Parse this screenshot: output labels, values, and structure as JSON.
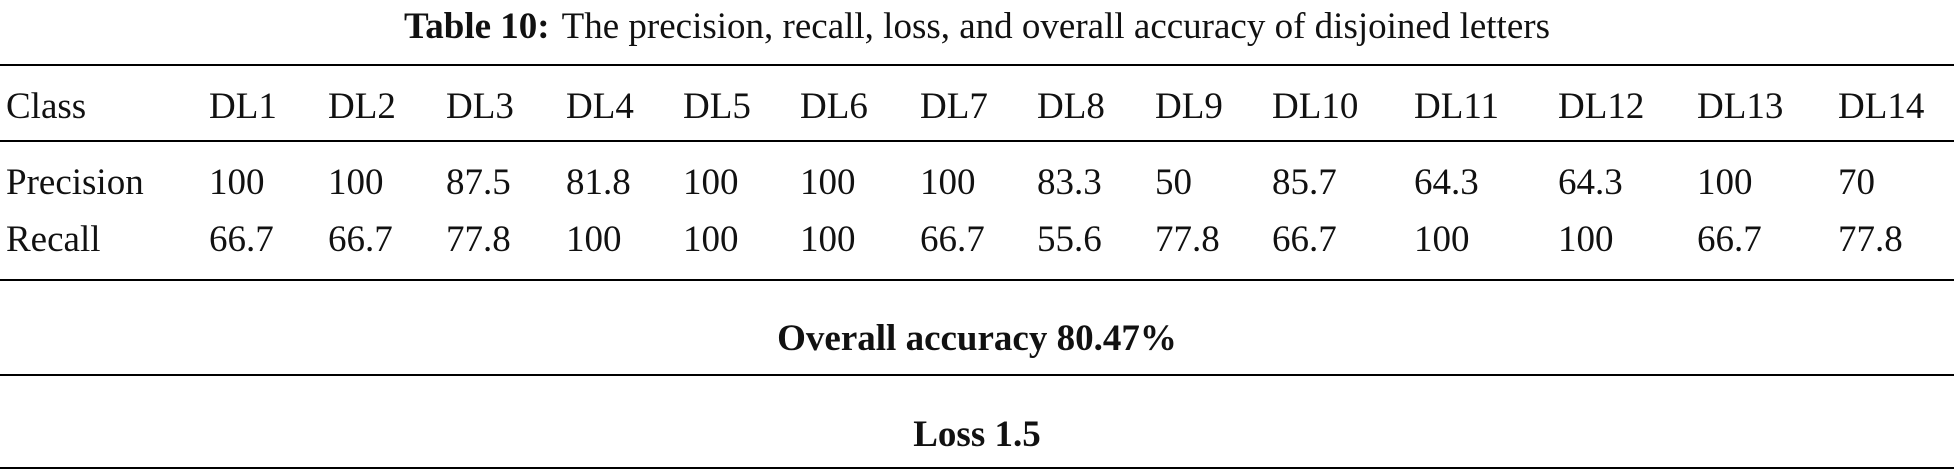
{
  "caption": {
    "label": "Table 10:",
    "text": "The precision, recall, loss, and overall accuracy of disjoined letters"
  },
  "table": {
    "header": [
      "Class",
      "DL1",
      "DL2",
      "DL3",
      "DL4",
      "DL5",
      "DL6",
      "DL7",
      "DL8",
      "DL9",
      "DL10",
      "DL11",
      "DL12",
      "DL13",
      "DL14"
    ],
    "rows": [
      [
        "Precision",
        100,
        100,
        87.5,
        81.8,
        100,
        100,
        100,
        83.3,
        50,
        85.7,
        64.3,
        64.3,
        100,
        70
      ],
      [
        "Recall",
        66.7,
        66.7,
        77.8,
        100,
        100,
        100,
        66.7,
        55.6,
        77.8,
        66.7,
        100,
        100,
        66.7,
        77.8
      ]
    ],
    "summary": [
      "Overall accuracy 80.47%",
      "Loss 1.5"
    ]
  }
}
